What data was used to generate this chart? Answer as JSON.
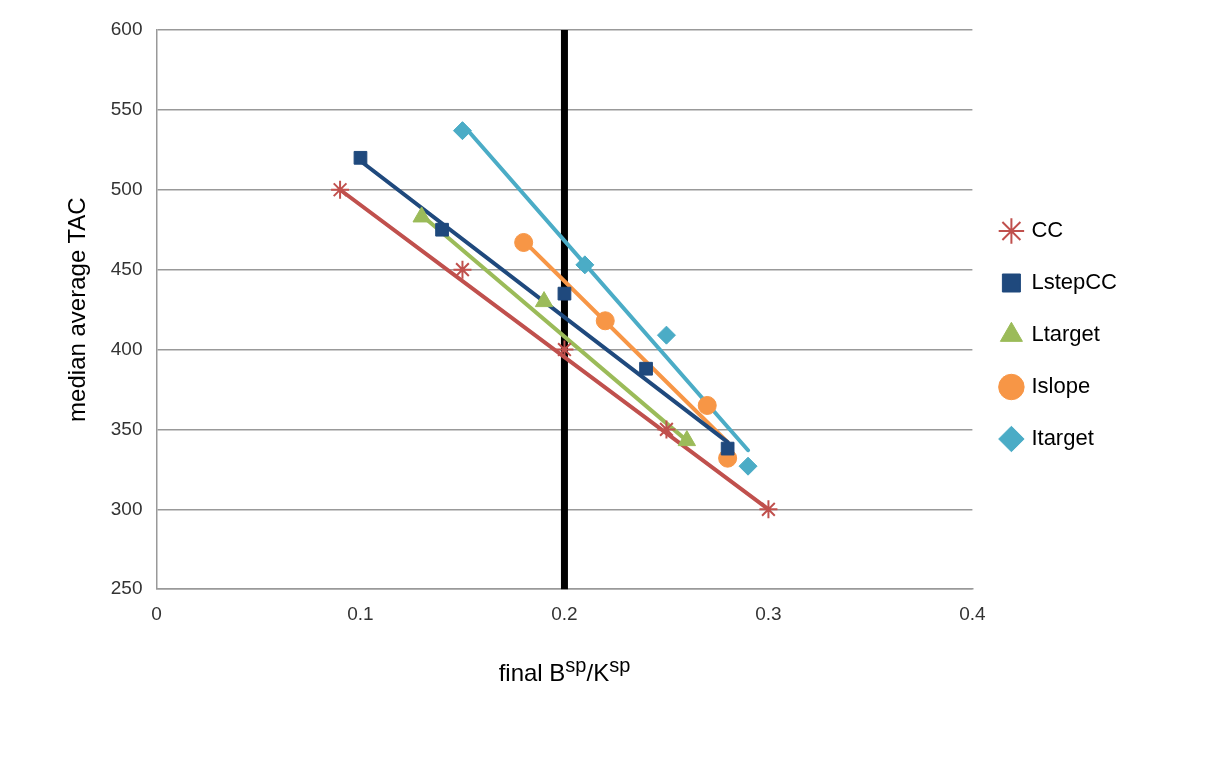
{
  "chart_data": {
    "type": "scatter",
    "xlabel": "final B$^{sp}$/K$^{sp}$",
    "ylabel": "median average TAC",
    "xlim": [
      0,
      0.4
    ],
    "xticks": [
      0,
      0.1,
      0.2,
      0.3,
      0.4
    ],
    "ylim": [
      250,
      600
    ],
    "yticks": [
      250,
      300,
      350,
      400,
      450,
      500,
      550,
      600
    ],
    "grid": "y",
    "legend": "right",
    "ref_lines": [
      {
        "axis": "x",
        "value": 0.2,
        "color": "#000000"
      }
    ],
    "series": [
      {
        "name": "CC",
        "type": "scatter",
        "marker": "cross",
        "color": "#c0504d",
        "x": [
          0.09,
          0.15,
          0.2,
          0.25,
          0.3
        ],
        "values": [
          500,
          450,
          400,
          350,
          300
        ]
      },
      {
        "name": "LstepCC",
        "type": "scatter",
        "marker": "square",
        "color": "#1f497d",
        "x": [
          0.1,
          0.14,
          0.2,
          0.24,
          0.28
        ],
        "values": [
          520,
          475,
          435,
          388,
          338
        ]
      },
      {
        "name": "Ltarget",
        "type": "scatter",
        "marker": "triangle",
        "color": "#9bbb59",
        "x": [
          0.13,
          0.19,
          0.26
        ],
        "values": [
          483,
          430,
          343
        ]
      },
      {
        "name": "Islope",
        "type": "scatter",
        "marker": "circle",
        "color": "#f79646",
        "x": [
          0.18,
          0.22,
          0.27,
          0.28
        ],
        "values": [
          467,
          418,
          365,
          332
        ]
      },
      {
        "name": "Itarget",
        "type": "scatter",
        "marker": "diamond",
        "color": "#4bacc6",
        "x": [
          0.15,
          0.21,
          0.25,
          0.29
        ],
        "values": [
          537,
          453,
          409,
          327
        ]
      },
      {
        "type": "line",
        "marker": "none",
        "color": "#c0504d",
        "x": [
          0.09,
          0.3
        ],
        "values": [
          500,
          300
        ]
      },
      {
        "type": "line",
        "marker": "none",
        "color": "#1f497d",
        "x": [
          0.1,
          0.28
        ],
        "values": [
          518,
          342
        ]
      },
      {
        "type": "line",
        "marker": "none",
        "color": "#9bbb59",
        "x": [
          0.13,
          0.26
        ],
        "values": [
          484,
          343
        ]
      },
      {
        "type": "line",
        "marker": "none",
        "color": "#f79646",
        "x": [
          0.18,
          0.28
        ],
        "values": [
          468,
          342
        ]
      },
      {
        "type": "line",
        "marker": "none",
        "color": "#4bacc6",
        "x": [
          0.15,
          0.29
        ],
        "values": [
          541,
          337
        ]
      }
    ]
  }
}
